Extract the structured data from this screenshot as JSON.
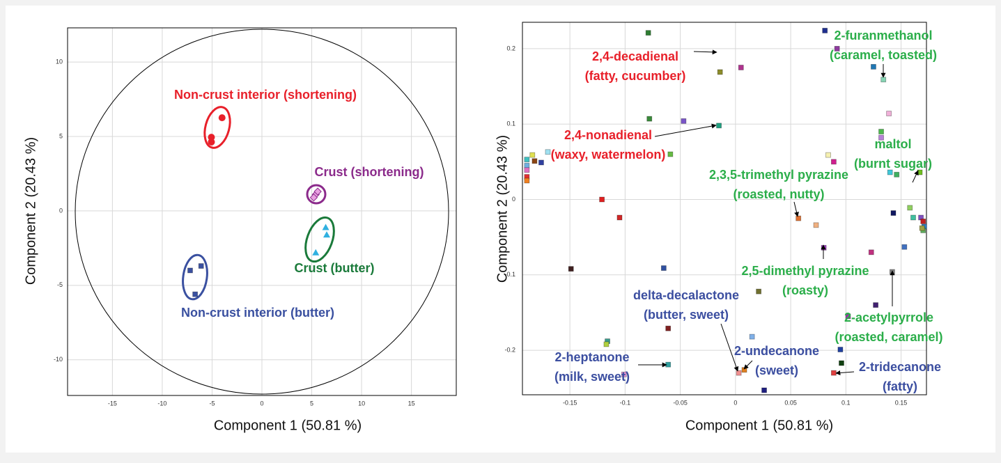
{
  "chart_data": [
    {
      "type": "scatter",
      "xlabel": "Component  1 (50.81 %)",
      "ylabel": "Component  2 (20.43 %)",
      "xlim": [
        -19.5,
        19.5
      ],
      "ylim": [
        -12.4,
        12.3
      ],
      "xticks": [
        -15,
        -10,
        -5,
        0,
        5,
        10,
        15
      ],
      "yticks": [
        -10,
        -5,
        0,
        5,
        10
      ],
      "grid": true,
      "series": [
        {
          "name": "Non-crust interior (shortening)",
          "color": "#e8202a",
          "marker": "circle",
          "x": [
            -4.0,
            -5.07,
            -5.07
          ],
          "values": [
            6.26,
            4.95,
            4.63
          ]
        },
        {
          "name": "Crust (shortening)",
          "color": "#8b2a8b",
          "marker": "diamond",
          "x": [
            5.4,
            5.6,
            5.2
          ],
          "values": [
            1.1,
            1.3,
            0.9
          ]
        },
        {
          "name": "Crust (butter)",
          "color": "#1a7a3a",
          "marker": "triangle",
          "x": [
            6.4,
            6.5,
            5.4
          ],
          "values": [
            -1.1,
            -1.6,
            -2.8
          ]
        },
        {
          "name": "Non-crust interior (butter)",
          "color": "#3a50a0",
          "marker": "square",
          "x": [
            -7.2,
            -6.1,
            -6.7
          ],
          "values": [
            -4.0,
            -3.7,
            -5.6
          ]
        }
      ]
    },
    {
      "type": "scatter",
      "xlabel": "Component  1 (50.81 %)",
      "ylabel": "Component  2 (20.43 %)",
      "xlim": [
        -0.193,
        0.173
      ],
      "ylim": [
        -0.259,
        0.235
      ],
      "xticks": [
        -0.15,
        -0.1,
        -0.05,
        0,
        0.05,
        0.1,
        0.15
      ],
      "yticks": [
        -0.2,
        -0.1,
        0,
        0.1,
        0.2
      ],
      "grid": true,
      "series": [
        {
          "marker": "square",
          "x": [
            -0.079,
            0.081,
            0.092,
            0.125,
            0.005,
            -0.014,
            0.134,
            0.139,
            -0.078,
            -0.047,
            -0.015,
            0.132,
            0.132,
            -0.059,
            0.084,
            0.089,
            -0.184,
            -0.17,
            -0.189,
            -0.182,
            -0.176,
            -0.189,
            -0.189,
            -0.189,
            -0.189,
            0.14,
            0.146,
            0.167,
            -0.121,
            -0.105,
            0.057,
            0.073,
            0.143,
            0.158,
            0.161,
            0.168,
            0.17,
            0.171,
            0.17,
            0.169,
            0.153,
            0.123,
            0.08,
            -0.065,
            -0.149,
            0.142,
            0.021,
            0.127,
            0.102,
            -0.061,
            -0.116,
            -0.117,
            0.015,
            0.095,
            0.096,
            0.089,
            -0.101,
            -0.061,
            0.003,
            0.008,
            0.026
          ],
          "values": [
            0.221,
            0.224,
            0.2,
            0.176,
            0.175,
            0.169,
            0.159,
            0.114,
            0.107,
            0.104,
            0.098,
            0.09,
            0.082,
            0.06,
            0.059,
            0.05,
            0.059,
            0.063,
            0.053,
            0.051,
            0.049,
            0.045,
            0.039,
            0.03,
            0.025,
            0.036,
            0.033,
            0.036,
            0.0,
            -0.024,
            -0.025,
            -0.034,
            -0.018,
            -0.011,
            -0.024,
            -0.024,
            -0.029,
            -0.036,
            -0.041,
            -0.038,
            -0.063,
            -0.07,
            -0.064,
            -0.091,
            -0.092,
            -0.096,
            -0.122,
            -0.14,
            -0.155,
            -0.171,
            -0.188,
            -0.192,
            -0.182,
            -0.199,
            -0.217,
            -0.23,
            -0.232,
            -0.219,
            -0.23,
            -0.226,
            -0.253
          ],
          "colors": [
            "#2e7d32",
            "#1f2f8f",
            "#8e3a9e",
            "#1f77b4",
            "#b0338f",
            "#8c8c2a",
            "#86d4b4",
            "#f0b0d8",
            "#3a8a3a",
            "#7a55c8",
            "#20a080",
            "#4cb84c",
            "#b880d8",
            "#66bb44",
            "#f5f0b0",
            "#d0208f",
            "#e0e050",
            "#a0e0f0",
            "#40c0c0",
            "#8b4513",
            "#3040a0",
            "#70b0e0",
            "#e070c0",
            "#e03030",
            "#f08020",
            "#40c8d8",
            "#40b060",
            "#70c020",
            "#e02020",
            "#d02828",
            "#e07030",
            "#f0b080",
            "#101860",
            "#90d060",
            "#40c0a0",
            "#8050c0",
            "#c02020",
            "#3080c0",
            "#60b060",
            "#a0a040",
            "#4070c0",
            "#c03080",
            "#a040c0",
            "#3050a0",
            "#402020",
            "#808080",
            "#707030",
            "#402070",
            "#9040a0",
            "#802020",
            "#3a9a8a",
            "#b0d040",
            "#80b0e8",
            "#2040a0",
            "#104010",
            "#e04040",
            "#e090d0",
            "#30a0a0",
            "#f09090",
            "#e08020",
            "#202080"
          ]
        }
      ],
      "annotations": [
        {
          "text": [
            "2,4-decadienal",
            "(fatty, cucumber)"
          ],
          "color": "#e8202a"
        },
        {
          "text": [
            "2,4-nonadienal",
            "(waxy, watermelon)"
          ],
          "color": "#e8202a"
        },
        {
          "text": [
            "2-furanmethanol",
            "(caramel, toasted)"
          ],
          "color": "#2bae4a"
        },
        {
          "text": [
            "maltol",
            "(burnt sugar)"
          ],
          "color": "#2bae4a"
        },
        {
          "text": [
            "2,3,5-trimethyl pyrazine",
            "(roasted, nutty)"
          ],
          "color": "#2bae4a"
        },
        {
          "text": [
            "2,5-dimethyl pyrazine",
            "(roasty)"
          ],
          "color": "#2bae4a"
        },
        {
          "text": [
            "2-acetylpyrrole",
            "(roasted, caramel)"
          ],
          "color": "#2bae4a"
        },
        {
          "text": [
            "delta-decalactone",
            "(butter, sweet)"
          ],
          "color": "#3b4ea0"
        },
        {
          "text": [
            "2-undecanone",
            "(sweet)"
          ],
          "color": "#3b4ea0"
        },
        {
          "text": [
            "2-heptanone",
            "(milk, sweet)"
          ],
          "color": "#3b4ea0"
        },
        {
          "text": [
            "2-tridecanone",
            "(fatty)"
          ],
          "color": "#3b4ea0"
        }
      ]
    }
  ]
}
